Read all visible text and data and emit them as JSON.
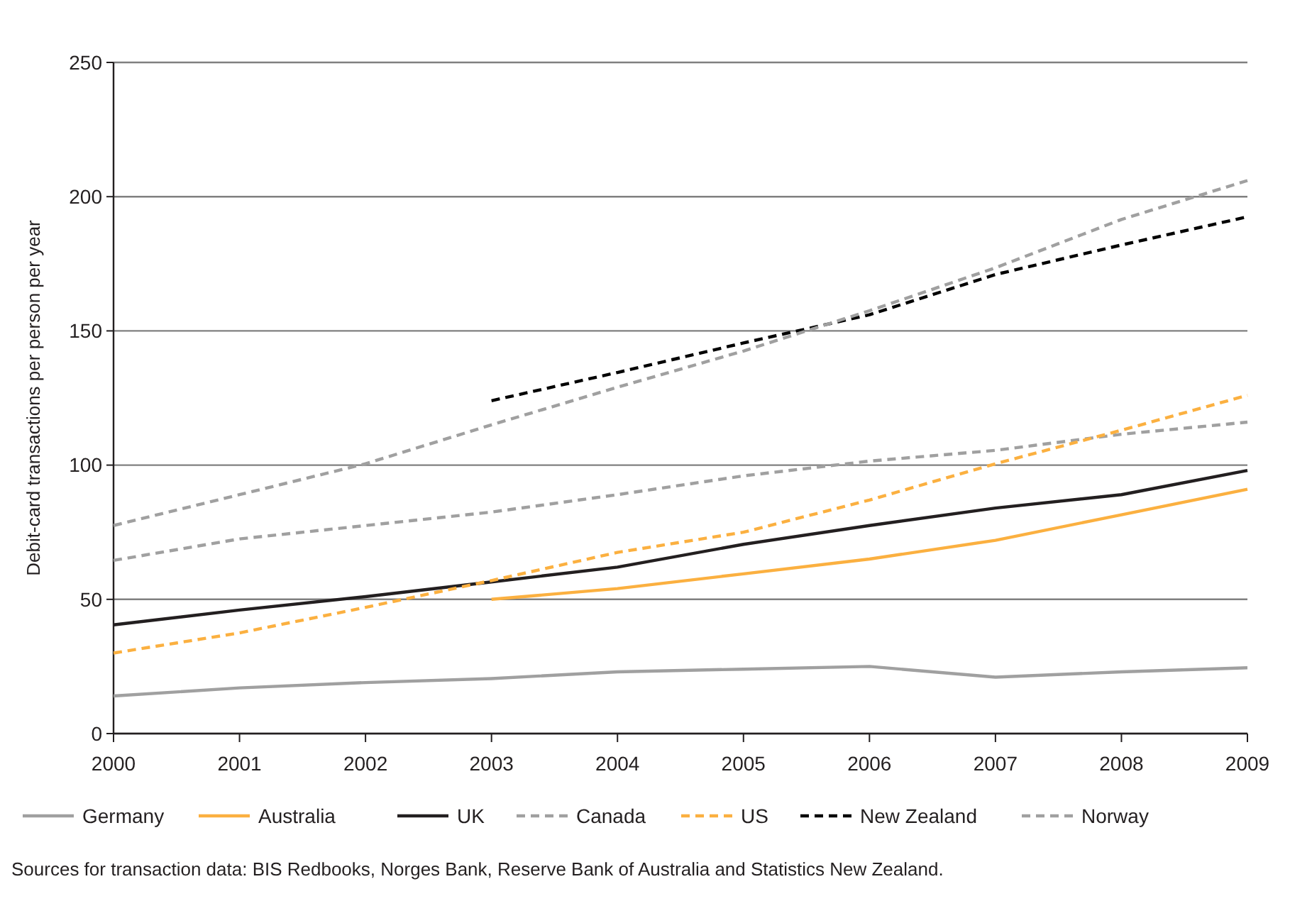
{
  "chart_data": {
    "type": "line",
    "ylabel": "Debit-card transactions per person per year",
    "x": [
      2000,
      2001,
      2002,
      2003,
      2004,
      2005,
      2006,
      2007,
      2008,
      2009
    ],
    "xlim": [
      2000,
      2009
    ],
    "xticks": [
      2000,
      2001,
      2002,
      2003,
      2004,
      2005,
      2006,
      2007,
      2008,
      2009
    ],
    "ylim": [
      0,
      250
    ],
    "yticks": [
      0,
      50,
      100,
      150,
      200,
      250
    ],
    "grid": "y",
    "legend": "bottom",
    "series": [
      {
        "name": "Germany",
        "color": "#a0a0a0",
        "line_style": "solid",
        "values": [
          14,
          17,
          19,
          20.5,
          23,
          24,
          25,
          21,
          23,
          24.5
        ]
      },
      {
        "name": "Australia",
        "color": "#fbb040",
        "line_style": "solid",
        "values": [
          null,
          null,
          null,
          50,
          54,
          59.5,
          65,
          72,
          81.5,
          91
        ]
      },
      {
        "name": "UK",
        "color": "#231f20",
        "line_style": "solid",
        "values": [
          40.5,
          46,
          51,
          56.5,
          62,
          70.5,
          77.5,
          84,
          89,
          98
        ]
      },
      {
        "name": "Canada",
        "color": "#a0a0a0",
        "line_style": "dashed",
        "values": [
          64.5,
          72.5,
          77.5,
          82.5,
          89,
          96,
          101.5,
          105.5,
          111.5,
          116
        ]
      },
      {
        "name": "US",
        "color": "#fbb040",
        "line_style": "dashed",
        "values": [
          30,
          37.5,
          47,
          57,
          67.5,
          75,
          87,
          100.5,
          113,
          126
        ]
      },
      {
        "name": "New Zealand",
        "color": "#000000",
        "line_style": "dashed",
        "values": [
          null,
          null,
          null,
          124,
          134.5,
          145.5,
          156,
          171,
          182,
          192.5
        ]
      },
      {
        "name": "Norway",
        "color": "#a0a0a0",
        "line_style": "dashed",
        "values": [
          77.5,
          89,
          100.5,
          115,
          129,
          142.5,
          157.5,
          173.5,
          191.5,
          206
        ]
      }
    ],
    "annotations": [
      "Sources for transaction data: BIS Redbooks, Norges Bank, Reserve Bank of Australia and Statistics New Zealand."
    ]
  }
}
